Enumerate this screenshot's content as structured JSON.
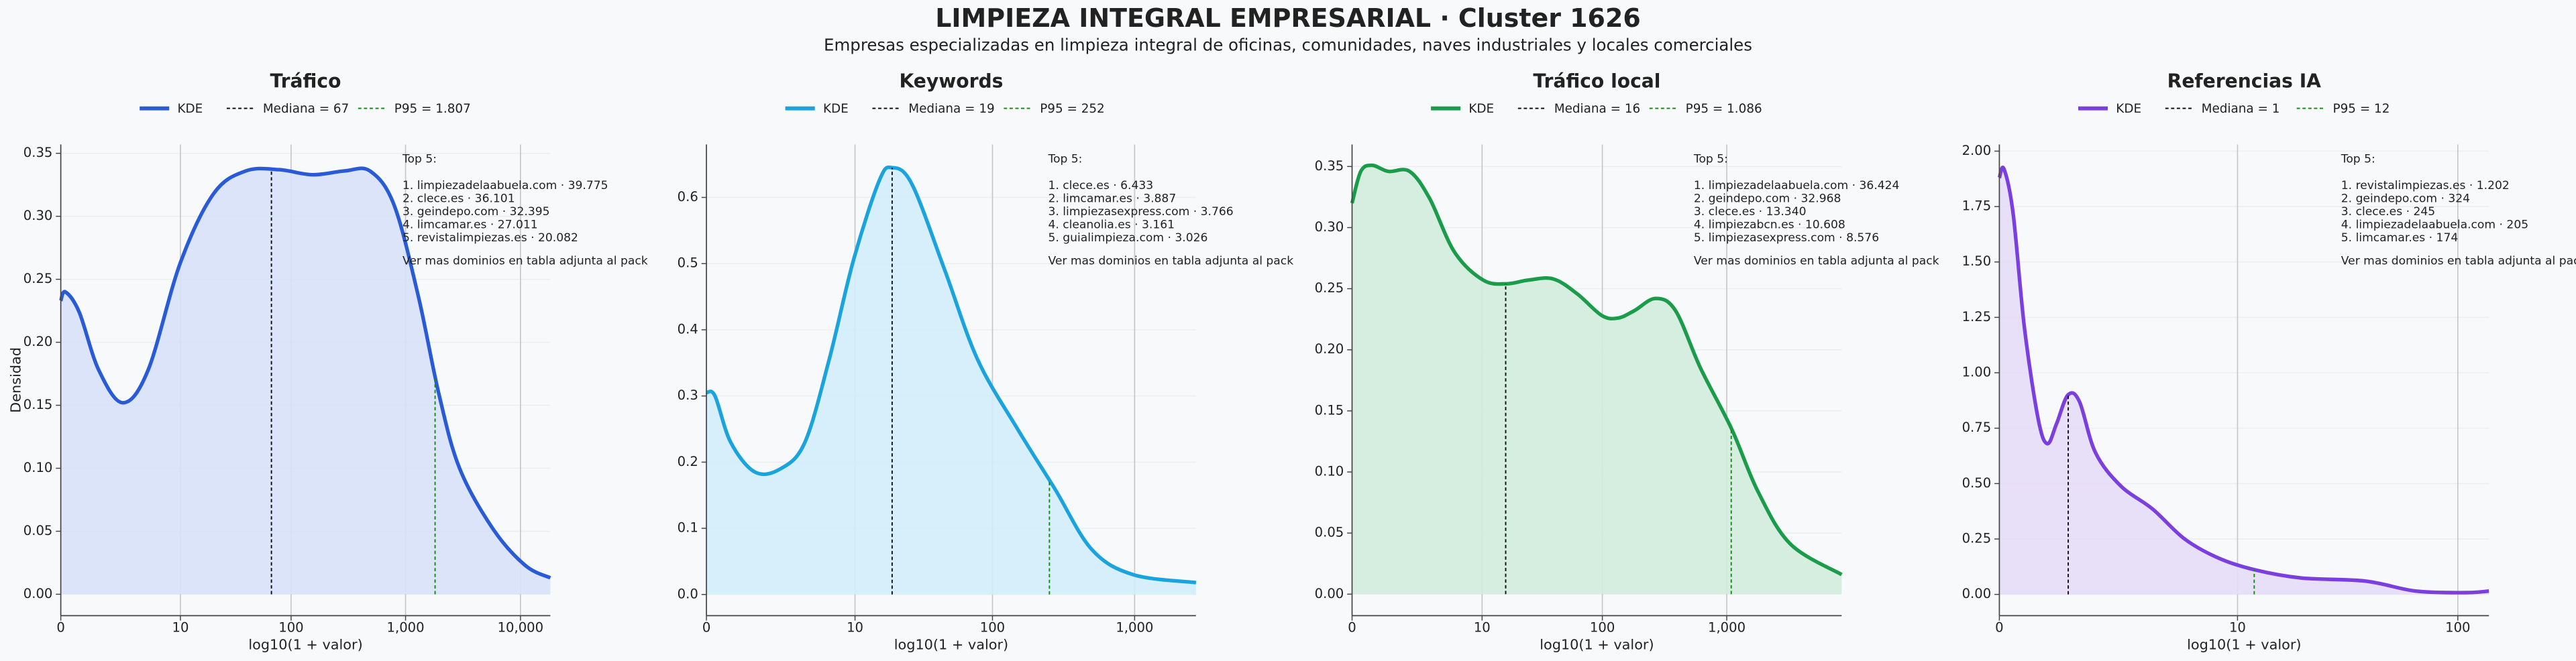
{
  "header": {
    "title": "LIMPIEZA INTEGRAL EMPRESARIAL · Cluster 1626",
    "subtitle": "Empresas especializadas en limpieza integral de oficinas, comunidades, naves industriales y locales comerciales"
  },
  "chart_data": [
    {
      "type": "area",
      "title": "Tráfico",
      "xlabel": "log10(1 + valor)",
      "ylabel": "Densidad",
      "grid": true,
      "x": [
        0,
        0.04,
        0.16,
        0.33,
        0.54,
        0.76,
        1.04,
        1.33,
        1.61,
        1.9,
        2.19,
        2.47,
        2.69,
        2.9,
        3.11,
        3.29,
        3.47,
        3.76,
        4.04,
        4.26
      ],
      "series": [
        {
          "name": "KDE",
          "color": "#2a5bd7",
          "fill": "#d7e1f8",
          "values": [
            0.233,
            0.24,
            0.224,
            0.178,
            0.152,
            0.178,
            0.263,
            0.318,
            0.336,
            0.337,
            0.333,
            0.336,
            0.336,
            0.309,
            0.237,
            0.159,
            0.1,
            0.052,
            0.023,
            0.013
          ]
        }
      ],
      "reference_lines": [
        {
          "name": "Mediana = 67",
          "x": 1.833,
          "color": "#111111"
        },
        {
          "name": "P95 = 1.807",
          "x": 3.257,
          "color": "#1a8a1a"
        }
      ],
      "annotation": [
        "Top 5:",
        "1. limpiezadelaabuela.com · 39.775",
        "2. clece.es · 36.101",
        "3. geindepo.com · 32.395",
        "4. limcamar.es · 27.011",
        "5. revistalimpiezas.es · 20.082",
        "Ver mas dominios en tabla adjunta al pack"
      ],
      "xlim": [
        0,
        4.26
      ],
      "ylim": [
        -0.017,
        0.357
      ],
      "xticks": [
        0,
        {
          "value": 1.041,
          "label": "10"
        },
        {
          "value": 2.004,
          "label": "100"
        },
        {
          "value": 3.0,
          "label": "1,000"
        },
        {
          "value": 4.0,
          "label": "10,000"
        }
      ],
      "yticks": [
        {
          "value": 0,
          "label": "0.00"
        },
        {
          "value": 0.05,
          "label": "0.05"
        },
        {
          "value": 0.1,
          "label": "0.10"
        },
        {
          "value": 0.15,
          "label": "0.15"
        },
        {
          "value": 0.2,
          "label": "0.20"
        },
        {
          "value": 0.25,
          "label": "0.25"
        },
        {
          "value": 0.3,
          "label": "0.30"
        },
        {
          "value": 0.35,
          "label": "0.35"
        }
      ]
    },
    {
      "type": "area",
      "title": "Keywords",
      "xlabel": "log10(1 + valor)",
      "grid": true,
      "x": [
        0,
        0.06,
        0.17,
        0.34,
        0.52,
        0.69,
        0.86,
        1.03,
        1.21,
        1.3,
        1.44,
        1.67,
        1.9,
        2.18,
        2.44,
        2.7,
        2.99,
        3.43
      ],
      "series": [
        {
          "name": "KDE",
          "color": "#1aa3dc",
          "fill": "#d2edf9",
          "values": [
            0.305,
            0.3,
            0.23,
            0.185,
            0.19,
            0.23,
            0.355,
            0.505,
            0.625,
            0.645,
            0.62,
            0.49,
            0.355,
            0.25,
            0.16,
            0.068,
            0.03,
            0.018
          ]
        }
      ],
      "reference_lines": [
        {
          "name": "Mediana = 19",
          "x": 1.301,
          "color": "#111111"
        },
        {
          "name": "P95 = 252",
          "x": 2.403,
          "color": "#1a8a1a"
        }
      ],
      "annotation": [
        "Top 5:",
        "1. clece.es · 6.433",
        "2. limcamar.es · 3.887",
        "3. limpiezasexpress.com · 3.766",
        "4. cleanolia.es · 3.161",
        "5. guialimpieza.com · 3.026",
        "Ver mas dominios en tabla adjunta al pack"
      ],
      "xlim": [
        0,
        3.43
      ],
      "ylim": [
        -0.032,
        0.68
      ],
      "xticks": [
        0,
        {
          "value": 1.041,
          "label": "10"
        },
        {
          "value": 2.004,
          "label": "100"
        },
        {
          "value": 3.0,
          "label": "1,000"
        }
      ],
      "yticks": [
        {
          "value": 0,
          "label": "0.0"
        },
        {
          "value": 0.1,
          "label": "0.1"
        },
        {
          "value": 0.2,
          "label": "0.2"
        },
        {
          "value": 0.3,
          "label": "0.3"
        },
        {
          "value": 0.4,
          "label": "0.4"
        },
        {
          "value": 0.5,
          "label": "0.5"
        },
        {
          "value": 0.6,
          "label": "0.6"
        }
      ]
    },
    {
      "type": "area",
      "title": "Tráfico local",
      "xlabel": "log10(1 + valor)",
      "grid": true,
      "x": [
        0,
        0.07,
        0.16,
        0.29,
        0.46,
        0.62,
        0.82,
        1.05,
        1.24,
        1.41,
        1.61,
        1.8,
        2.0,
        2.13,
        2.26,
        2.43,
        2.59,
        2.79,
        3.04,
        3.25,
        3.51,
        3.92
      ],
      "series": [
        {
          "name": "KDE",
          "color": "#1a9c4a",
          "fill": "#d2ecdb",
          "values": [
            0.32,
            0.346,
            0.351,
            0.346,
            0.346,
            0.324,
            0.28,
            0.257,
            0.254,
            0.257,
            0.258,
            0.246,
            0.228,
            0.226,
            0.232,
            0.242,
            0.232,
            0.185,
            0.135,
            0.084,
            0.041,
            0.016
          ]
        }
      ],
      "reference_lines": [
        {
          "name": "Mediana = 16",
          "x": 1.23,
          "color": "#111111"
        },
        {
          "name": "P95 = 1.086",
          "x": 3.036,
          "color": "#1a8a1a"
        }
      ],
      "annotation": [
        "Top 5:",
        "1. limpiezadelaabuela.com · 36.424",
        "2. geindepo.com · 32.968",
        "3. clece.es · 13.340",
        "4. limpiezabcn.es · 10.608",
        "5. limpiezasexpress.com · 8.576",
        "Ver mas dominios en tabla adjunta al pack"
      ],
      "xlim": [
        0,
        3.92
      ],
      "ylim": [
        -0.0176,
        0.368
      ],
      "xticks": [
        0,
        {
          "value": 1.041,
          "label": "10"
        },
        {
          "value": 2.004,
          "label": "100"
        },
        {
          "value": 3.0,
          "label": "1,000"
        }
      ],
      "yticks": [
        {
          "value": 0,
          "label": "0.00"
        },
        {
          "value": 0.05,
          "label": "0.05"
        },
        {
          "value": 0.1,
          "label": "0.10"
        },
        {
          "value": 0.15,
          "label": "0.15"
        },
        {
          "value": 0.2,
          "label": "0.20"
        },
        {
          "value": 0.25,
          "label": "0.25"
        },
        {
          "value": 0.3,
          "label": "0.30"
        },
        {
          "value": 0.35,
          "label": "0.35"
        }
      ]
    },
    {
      "type": "area",
      "title": "Referencias IA",
      "xlabel": "log10(1 + valor)",
      "grid": true,
      "x": [
        0,
        0.02,
        0.06,
        0.11,
        0.17,
        0.21,
        0.25,
        0.3,
        0.35,
        0.42,
        0.53,
        0.67,
        0.81,
        0.96,
        1.12,
        1.32,
        1.6,
        1.82,
        2.04,
        2.14
      ],
      "series": [
        {
          "name": "KDE",
          "color": "#7b3fe0",
          "fill": "#e6dbf8",
          "values": [
            1.88,
            1.92,
            1.72,
            1.2,
            0.79,
            0.68,
            0.77,
            0.9,
            0.87,
            0.64,
            0.49,
            0.385,
            0.25,
            0.163,
            0.11,
            0.074,
            0.06,
            0.015,
            0.008,
            0.015
          ]
        }
      ],
      "reference_lines": [
        {
          "name": "Mediana = 1",
          "x": 0.301,
          "color": "#111111"
        },
        {
          "name": "P95 = 12",
          "x": 1.114,
          "color": "#1a8a1a"
        }
      ],
      "annotation": [
        "Top 5:",
        "1. revistalimpiezas.es · 1.202",
        "2. geindepo.com · 324",
        "3. clece.es · 245",
        "4. limpiezadelaabuela.com · 205",
        "5. limcamar.es · 174",
        "Ver mas dominios en tabla adjunta al pack"
      ],
      "xlim": [
        0,
        2.14
      ],
      "ylim": [
        -0.096,
        2.03
      ],
      "xticks": [
        0,
        {
          "value": 1.041,
          "label": "10"
        },
        {
          "value": 2.004,
          "label": "100"
        }
      ],
      "yticks": [
        {
          "value": 0,
          "label": "0.00"
        },
        {
          "value": 0.25,
          "label": "0.25"
        },
        {
          "value": 0.5,
          "label": "0.50"
        },
        {
          "value": 0.75,
          "label": "0.75"
        },
        {
          "value": 1.0,
          "label": "1.00"
        },
        {
          "value": 1.25,
          "label": "1.25"
        },
        {
          "value": 1.5,
          "label": "1.50"
        },
        {
          "value": 1.75,
          "label": "1.75"
        },
        {
          "value": 2.0,
          "label": "2.00"
        }
      ]
    }
  ]
}
